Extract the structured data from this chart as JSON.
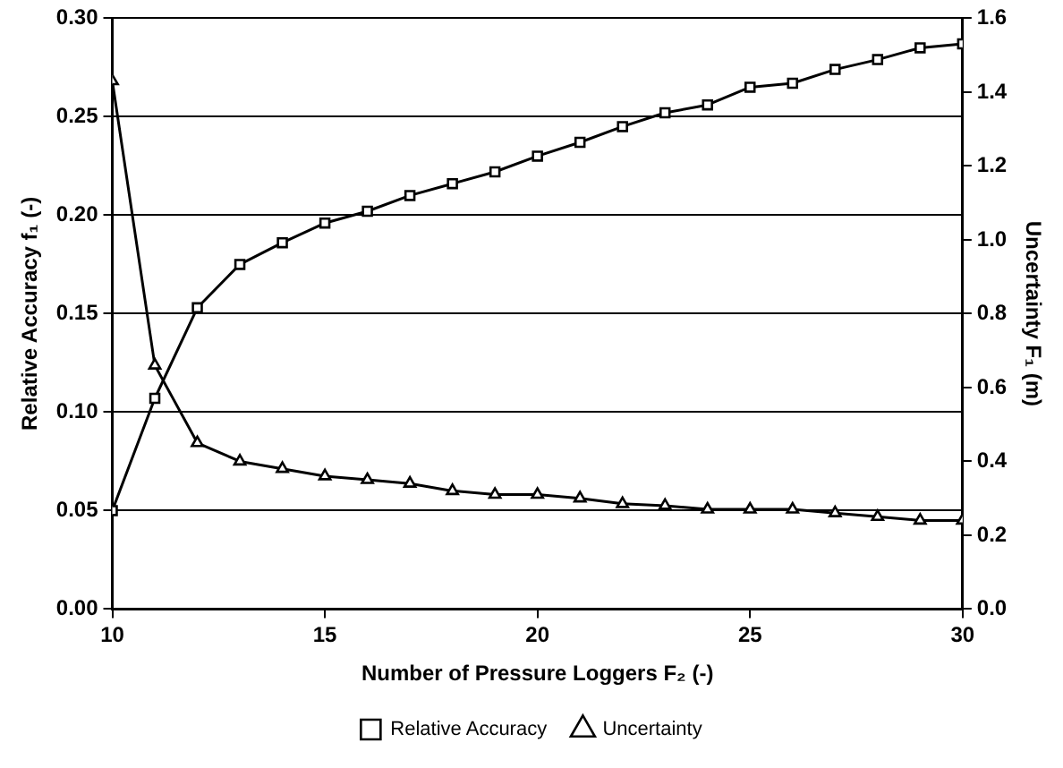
{
  "chart_data": {
    "type": "line",
    "xlabel": "Number of Pressure Loggers F₂ (-)",
    "ylabel": "Relative Accuracy f₁ (-)",
    "y2label": "Uncertainty F₁ (m)",
    "x": [
      10,
      11,
      12,
      13,
      14,
      15,
      16,
      17,
      18,
      19,
      20,
      21,
      22,
      23,
      24,
      25,
      26,
      27,
      28,
      29,
      30
    ],
    "series": [
      {
        "name": "Relative Accuracy",
        "color": "#000000",
        "marker": "square",
        "values": [
          0.05,
          0.107,
          0.153,
          0.175,
          0.186,
          0.196,
          0.202,
          0.21,
          0.216,
          0.222,
          0.23,
          0.237,
          0.245,
          0.252,
          0.256,
          0.265,
          0.267,
          0.274,
          0.279,
          0.285,
          0.287
        ]
      },
      {
        "name": "Uncertainty",
        "color": "#000000",
        "marker": "triangle",
        "axis": "y2",
        "values": [
          1.43,
          0.66,
          0.45,
          0.4,
          0.38,
          0.36,
          0.35,
          0.34,
          0.32,
          0.31,
          0.31,
          0.3,
          0.285,
          0.28,
          0.27,
          0.27,
          0.27,
          0.26,
          0.25,
          0.24,
          0.24
        ]
      }
    ],
    "xlim": [
      10,
      30
    ],
    "xticks": [
      10,
      15,
      20,
      25,
      30
    ],
    "ylim": [
      0,
      0.3
    ],
    "yticks": [
      {
        "value": 0,
        "label": "0.00"
      },
      {
        "value": 0.05,
        "label": "0.05"
      },
      {
        "value": 0.1,
        "label": "0.10"
      },
      {
        "value": 0.15,
        "label": "0.15"
      },
      {
        "value": 0.2,
        "label": "0.20"
      },
      {
        "value": 0.25,
        "label": "0.25"
      },
      {
        "value": 0.3,
        "label": "0.30"
      }
    ],
    "y2lim": [
      0,
      1.6
    ],
    "y2ticks": [
      {
        "value": 0,
        "label": "0.0"
      },
      {
        "value": 0.2,
        "label": "0.2"
      },
      {
        "value": 0.4,
        "label": "0.4"
      },
      {
        "value": 0.6,
        "label": "0.6"
      },
      {
        "value": 0.8,
        "label": "0.8"
      },
      {
        "value": 1,
        "label": "1.0"
      },
      {
        "value": 1.2,
        "label": "1.2"
      },
      {
        "value": 1.4,
        "label": "1.4"
      },
      {
        "value": 1.6,
        "label": "1.6"
      }
    ],
    "grid": "y",
    "legend": "bottom",
    "line_style": "solid"
  }
}
